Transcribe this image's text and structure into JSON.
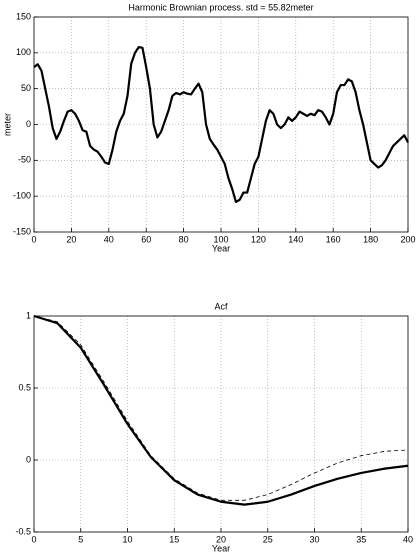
{
  "chart_data": [
    {
      "type": "line",
      "title": "Harmonic Brownian process. std = 55.82meter",
      "xlabel": "Year",
      "ylabel": "meter",
      "x": [
        0,
        2,
        4,
        6,
        8,
        10,
        12,
        14,
        16,
        18,
        20,
        22,
        24,
        26,
        28,
        30,
        32,
        34,
        36,
        38,
        40,
        42,
        44,
        46,
        48,
        50,
        52,
        54,
        56,
        58,
        60,
        62,
        64,
        66,
        68,
        70,
        72,
        74,
        76,
        78,
        80,
        82,
        84,
        86,
        88,
        90,
        92,
        94,
        96,
        98,
        100,
        102,
        104,
        106,
        108,
        110,
        112,
        114,
        116,
        118,
        120,
        122,
        124,
        126,
        128,
        130,
        132,
        134,
        136,
        138,
        140,
        142,
        144,
        146,
        148,
        150,
        152,
        154,
        156,
        158,
        160,
        162,
        164,
        166,
        168,
        170,
        172,
        174,
        176,
        178,
        180,
        182,
        184,
        186,
        188,
        190,
        192,
        194,
        196,
        198,
        200
      ],
      "series": [
        {
          "color": "#000000",
          "dash": false,
          "values": [
            80,
            84,
            75,
            50,
            25,
            -5,
            -20,
            -10,
            5,
            18,
            20,
            15,
            5,
            -8,
            -10,
            -30,
            -35,
            -38,
            -45,
            -53,
            -55,
            -35,
            -10,
            5,
            15,
            40,
            85,
            100,
            108,
            107,
            80,
            50,
            0,
            -18,
            -10,
            5,
            20,
            40,
            44,
            42,
            45,
            43,
            42,
            50,
            57,
            45,
            0,
            -20,
            -28,
            -35,
            -45,
            -55,
            -75,
            -90,
            -108,
            -105,
            -95,
            -95,
            -75,
            -55,
            -45,
            -20,
            5,
            20,
            15,
            0,
            -5,
            0,
            10,
            5,
            10,
            18,
            15,
            12,
            15,
            13,
            20,
            18,
            10,
            0,
            15,
            45,
            55,
            55,
            63,
            60,
            45,
            20,
            0,
            -25,
            -50,
            -55,
            -60,
            -57,
            -50,
            -40,
            -30,
            -25,
            -20,
            -15,
            -25
          ]
        }
      ],
      "xlim": [
        0,
        200
      ],
      "xticks": [
        0,
        20,
        40,
        60,
        80,
        100,
        120,
        140,
        160,
        180,
        200
      ],
      "ylim": [
        -150,
        150
      ],
      "yticks": [
        -150,
        -100,
        -50,
        0,
        50,
        100,
        150
      ],
      "grid": true
    },
    {
      "type": "line",
      "title": "Acf",
      "xlabel": "Year",
      "x": [
        0,
        2.5,
        5,
        7.5,
        10,
        12.5,
        15,
        17.5,
        20,
        22.5,
        25,
        27.5,
        30,
        32.5,
        35,
        37.5,
        40
      ],
      "series": [
        {
          "color": "#000000",
          "dash": false,
          "values": [
            1,
            0.95,
            0.78,
            0.52,
            0.25,
            0.02,
            -0.14,
            -0.24,
            -0.29,
            -0.31,
            -0.29,
            -0.24,
            -0.18,
            -0.13,
            -0.09,
            -0.06,
            -0.04
          ]
        },
        {
          "color": "#000000",
          "dash": true,
          "values": [
            1,
            0.96,
            0.8,
            0.54,
            0.27,
            0.03,
            -0.13,
            -0.23,
            -0.28,
            -0.28,
            -0.24,
            -0.17,
            -0.09,
            -0.02,
            0.03,
            0.06,
            0.07
          ]
        }
      ],
      "xlim": [
        0,
        40
      ],
      "xticks": [
        0,
        5,
        10,
        15,
        20,
        25,
        30,
        35,
        40
      ],
      "ylim": [
        -0.5,
        1
      ],
      "yticks": [
        -0.5,
        0,
        0.5,
        1
      ],
      "grid": true
    }
  ]
}
